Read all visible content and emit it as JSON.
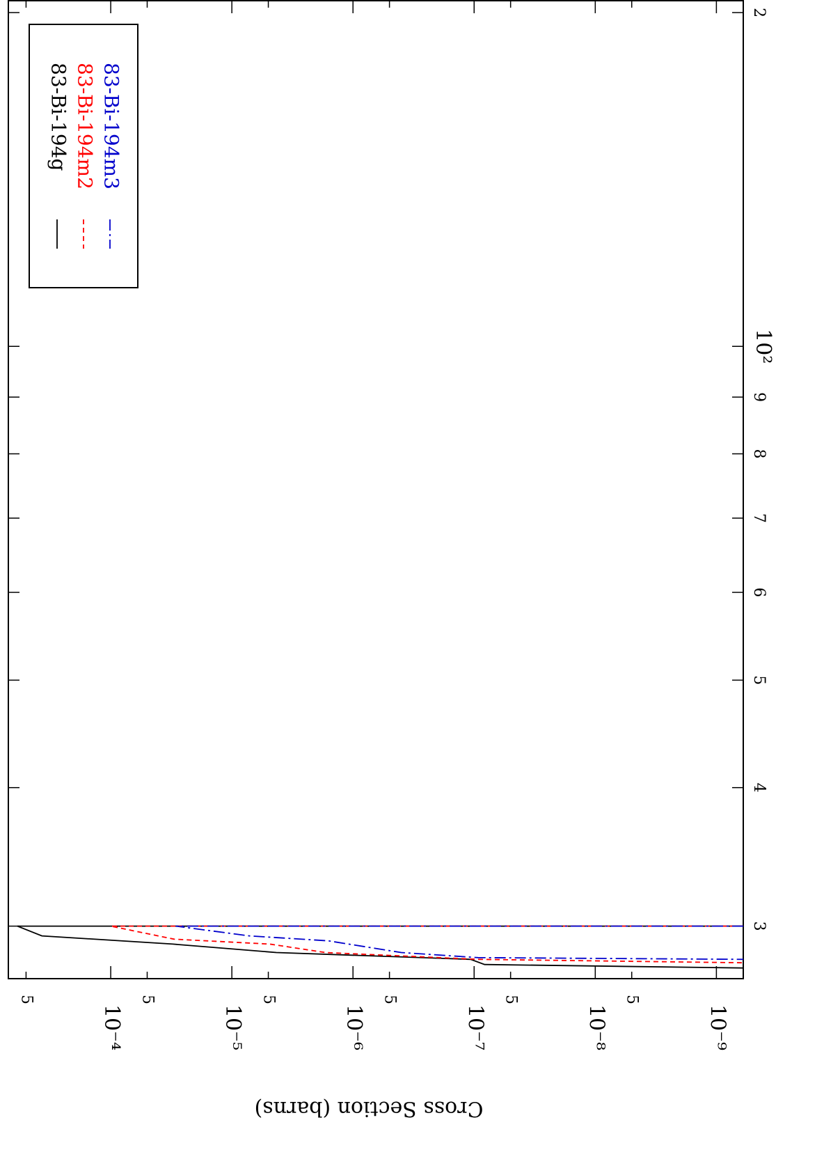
{
  "chart_data": {
    "type": "line",
    "y_label": "Cross Section (barns)",
    "xscale": "log",
    "yscale": "log",
    "xlim": [
      26.9,
      205
    ],
    "ylim": [
      6e-10,
      0.0007
    ],
    "xticks": [
      {
        "value": 30,
        "label": "3"
      },
      {
        "value": 40,
        "label": "4"
      },
      {
        "value": 50,
        "label": "5"
      },
      {
        "value": 60,
        "label": "6"
      },
      {
        "value": 70,
        "label": "7"
      },
      {
        "value": 80,
        "label": "8"
      },
      {
        "value": 90,
        "label": "9"
      },
      {
        "value": 100,
        "label": "10²"
      },
      {
        "value": 200,
        "label": "2"
      }
    ],
    "yticks": [
      {
        "value": 0.0005,
        "label": "5"
      },
      {
        "value": 0.0001,
        "label": "10⁻⁴"
      },
      {
        "value": 5e-05,
        "label": "5"
      },
      {
        "value": 1e-05,
        "label": "10⁻⁵"
      },
      {
        "value": 5e-06,
        "label": "5"
      },
      {
        "value": 1e-06,
        "label": "10⁻⁶"
      },
      {
        "value": 5e-07,
        "label": "5"
      },
      {
        "value": 1e-07,
        "label": "10⁻⁷"
      },
      {
        "value": 5e-08,
        "label": "5"
      },
      {
        "value": 1e-08,
        "label": "10⁻⁸"
      },
      {
        "value": 5e-09,
        "label": "5"
      },
      {
        "value": 1e-09,
        "label": "10⁻⁹"
      }
    ],
    "series": [
      {
        "name": "83-Bi-194g",
        "color": "#000000",
        "dash": "none",
        "x": [
          30,
          30,
          29.4,
          28.9,
          28.4,
          28.0,
          27.7,
          27.5
        ],
        "values": [
          6e-10,
          0.00059,
          0.00037,
          3.06e-05,
          4.3e-06,
          1.07e-07,
          8.2e-08,
          6e-10
        ]
      },
      {
        "name": "83-Bi-194m2",
        "color": "#ff0000",
        "dash": "7,5",
        "x": [
          30,
          30,
          29.2,
          28.9,
          28.4,
          28.0,
          27.8
        ],
        "values": [
          6e-10,
          0.0001,
          3e-05,
          4.85e-06,
          1.69e-06,
          9.3e-08,
          6e-10
        ]
      },
      {
        "name": "83-Bi-194m3",
        "color": "#0000cc",
        "dash": "16,5,3,5",
        "x": [
          30,
          30,
          29.4,
          29.1,
          28.4,
          28.1,
          28.0
        ],
        "values": [
          6e-10,
          2.9e-05,
          7.2e-06,
          1.6e-06,
          4e-07,
          9.3e-08,
          6e-10
        ]
      }
    ]
  }
}
